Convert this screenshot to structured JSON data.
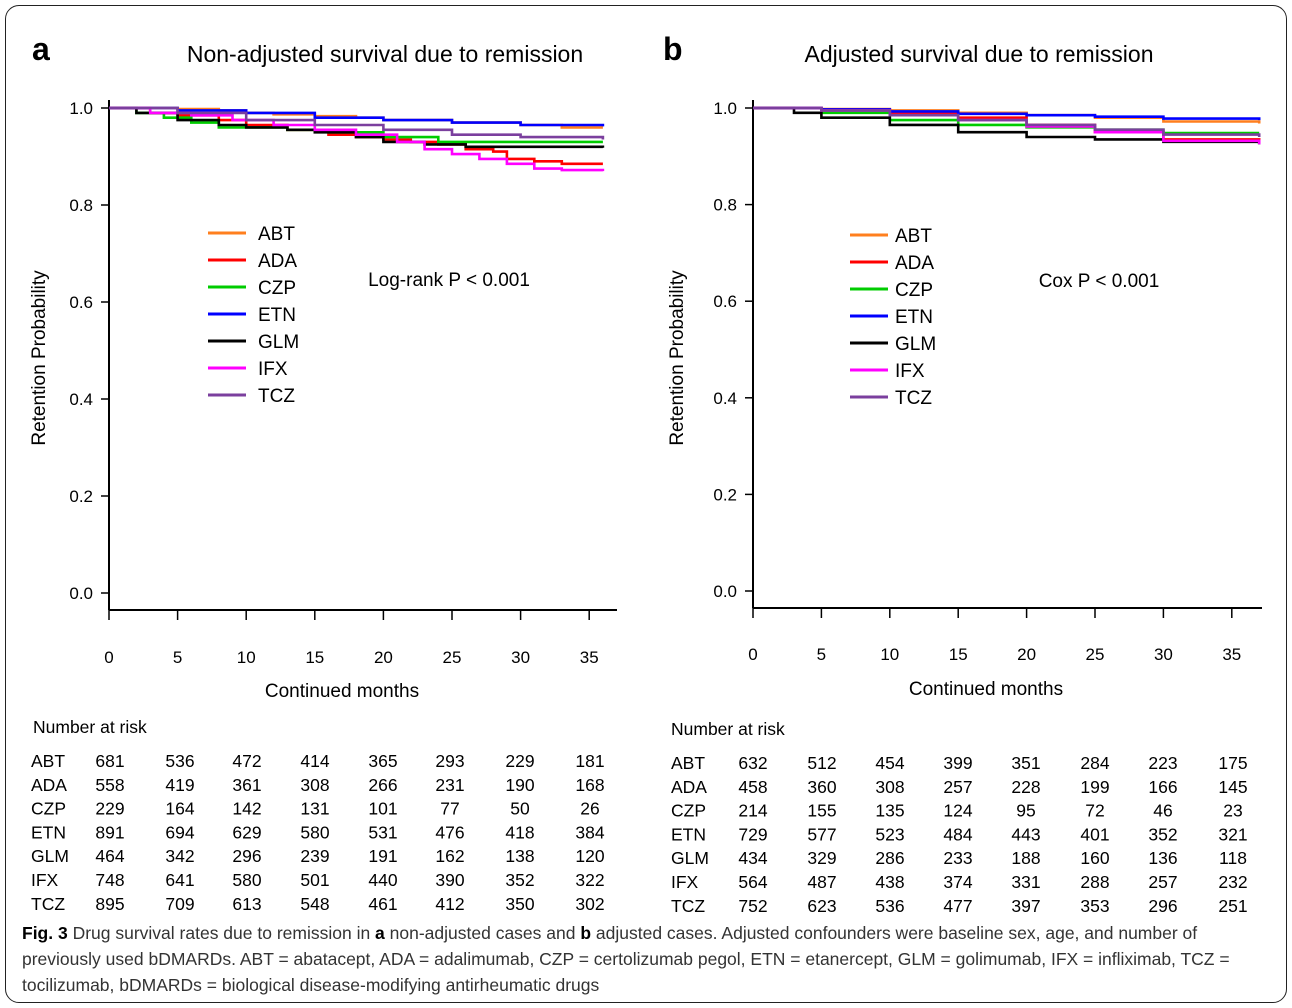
{
  "figure": {
    "caption": {
      "fig_label": "Fig. 3",
      "text_1": " Drug survival rates due to remission in ",
      "a": "a",
      "text_2": " non-adjusted cases and ",
      "b": "b",
      "text_3": " adjusted cases. Adjusted confounders were baseline sex, age, and number of previously used bDMARDs. ABT = abatacept, ADA = adalimumab, CZP = certolizumab pegol, ETN = etanercept, GLM = golimumab, IFX = infliximab, TCZ = tocilizumab, bDMARDs = biological disease-modifying antirheumatic drugs"
    }
  },
  "chart_data": [
    {
      "panel_label": "a",
      "type": "line",
      "title": "Non-adjusted survival due to remission",
      "xlabel": "Continued months",
      "ylabel": "Retention Probability",
      "annotation": "Log-rank P < 0.001",
      "xlim": [
        0,
        36
      ],
      "ylim": [
        0,
        1
      ],
      "xticks": [
        0,
        5,
        10,
        15,
        20,
        25,
        30,
        35
      ],
      "yticks": [
        "0.0",
        "0.2",
        "0.4",
        "0.6",
        "0.8",
        "1.0"
      ],
      "legend_position": "upper-left inside",
      "series": [
        {
          "name": "ABT",
          "color": "#ff7f1e",
          "x": [
            0,
            5,
            8,
            10,
            12,
            15,
            18,
            20,
            25,
            30,
            33,
            36
          ],
          "y": [
            1.0,
            0.998,
            0.995,
            0.99,
            0.987,
            0.983,
            0.98,
            0.975,
            0.97,
            0.965,
            0.96,
            0.96
          ]
        },
        {
          "name": "ADA",
          "color": "#ff0000",
          "x": [
            0,
            3,
            5,
            8,
            10,
            13,
            16,
            18,
            20,
            22,
            24,
            26,
            28,
            29,
            31,
            33,
            36
          ],
          "y": [
            1.0,
            0.99,
            0.985,
            0.975,
            0.965,
            0.955,
            0.945,
            0.94,
            0.935,
            0.93,
            0.925,
            0.915,
            0.91,
            0.895,
            0.89,
            0.885,
            0.885
          ]
        },
        {
          "name": "CZP",
          "color": "#00cc00",
          "x": [
            0,
            2,
            4,
            6,
            8,
            10,
            13,
            16,
            20,
            24,
            36
          ],
          "y": [
            1.0,
            0.99,
            0.98,
            0.97,
            0.96,
            0.96,
            0.955,
            0.95,
            0.94,
            0.93,
            0.93
          ]
        },
        {
          "name": "ETN",
          "color": "#0000ff",
          "x": [
            0,
            5,
            10,
            15,
            20,
            25,
            30,
            36
          ],
          "y": [
            1.0,
            0.995,
            0.99,
            0.98,
            0.975,
            0.97,
            0.965,
            0.962
          ]
        },
        {
          "name": "GLM",
          "color": "#000000",
          "x": [
            0,
            2,
            5,
            8,
            10,
            13,
            15,
            18,
            20,
            23,
            26,
            30,
            36
          ],
          "y": [
            1.0,
            0.99,
            0.975,
            0.965,
            0.96,
            0.955,
            0.95,
            0.94,
            0.93,
            0.925,
            0.92,
            0.92,
            0.918
          ]
        },
        {
          "name": "IFX",
          "color": "#ff00ff",
          "x": [
            0,
            3,
            6,
            9,
            12,
            15,
            18,
            21,
            23,
            25,
            27,
            29,
            31,
            33,
            36
          ],
          "y": [
            1.0,
            0.99,
            0.985,
            0.975,
            0.965,
            0.955,
            0.945,
            0.93,
            0.915,
            0.905,
            0.895,
            0.885,
            0.875,
            0.872,
            0.87
          ]
        },
        {
          "name": "TCZ",
          "color": "#7b3f9e",
          "x": [
            0,
            5,
            10,
            15,
            20,
            25,
            30,
            36
          ],
          "y": [
            1.0,
            0.99,
            0.975,
            0.965,
            0.955,
            0.945,
            0.94,
            0.935
          ]
        }
      ],
      "risk_table": {
        "title": "Number at risk",
        "rows": [
          {
            "name": "ABT",
            "values": [
              681,
              536,
              472,
              414,
              365,
              293,
              229,
              181
            ]
          },
          {
            "name": "ADA",
            "values": [
              558,
              419,
              361,
              308,
              266,
              231,
              190,
              168
            ]
          },
          {
            "name": "CZP",
            "values": [
              229,
              164,
              142,
              131,
              101,
              77,
              50,
              26
            ]
          },
          {
            "name": "ETN",
            "values": [
              891,
              694,
              629,
              580,
              531,
              476,
              418,
              384
            ]
          },
          {
            "name": "GLM",
            "values": [
              464,
              342,
              296,
              239,
              191,
              162,
              138,
              120
            ]
          },
          {
            "name": "IFX",
            "values": [
              748,
              641,
              580,
              501,
              440,
              390,
              352,
              322
            ]
          },
          {
            "name": "TCZ",
            "values": [
              895,
              709,
              613,
              548,
              461,
              412,
              350,
              302
            ]
          }
        ]
      }
    },
    {
      "panel_label": "b",
      "type": "line",
      "title": "Adjusted survival due to remission",
      "xlabel": "Continued months",
      "ylabel": "Retention Probability",
      "annotation": "Cox P < 0.001",
      "xlim": [
        0,
        37
      ],
      "ylim": [
        0,
        1
      ],
      "xticks": [
        0,
        5,
        10,
        15,
        20,
        25,
        30,
        35
      ],
      "yticks": [
        "0.0",
        "0.2",
        "0.4",
        "0.6",
        "0.8",
        "1.0"
      ],
      "legend_position": "upper-left inside",
      "series": [
        {
          "name": "ABT",
          "color": "#ff7f1e",
          "x": [
            0,
            5,
            10,
            15,
            20,
            25,
            30,
            37
          ],
          "y": [
            1.0,
            0.998,
            0.995,
            0.99,
            0.985,
            0.98,
            0.972,
            0.968
          ]
        },
        {
          "name": "ADA",
          "color": "#ff0000",
          "x": [
            0,
            5,
            10,
            15,
            20,
            25,
            30,
            37
          ],
          "y": [
            1.0,
            0.997,
            0.99,
            0.98,
            0.965,
            0.95,
            0.935,
            0.93
          ]
        },
        {
          "name": "CZP",
          "color": "#00cc00",
          "x": [
            0,
            5,
            10,
            15,
            20,
            25,
            30,
            37
          ],
          "y": [
            1.0,
            0.99,
            0.975,
            0.965,
            0.96,
            0.955,
            0.948,
            0.948
          ]
        },
        {
          "name": "ETN",
          "color": "#0000ff",
          "x": [
            0,
            5,
            10,
            15,
            20,
            25,
            30,
            37
          ],
          "y": [
            1.0,
            0.997,
            0.993,
            0.988,
            0.985,
            0.982,
            0.978,
            0.975
          ]
        },
        {
          "name": "GLM",
          "color": "#000000",
          "x": [
            0,
            3,
            5,
            10,
            15,
            20,
            25,
            30,
            37
          ],
          "y": [
            1.0,
            0.99,
            0.98,
            0.965,
            0.95,
            0.94,
            0.935,
            0.93,
            0.925
          ]
        },
        {
          "name": "IFX",
          "color": "#ff00ff",
          "x": [
            0,
            5,
            10,
            15,
            20,
            25,
            30,
            37
          ],
          "y": [
            1.0,
            0.995,
            0.985,
            0.975,
            0.962,
            0.95,
            0.932,
            0.925
          ]
        },
        {
          "name": "TCZ",
          "color": "#7b3f9e",
          "x": [
            0,
            5,
            10,
            15,
            20,
            25,
            30,
            37
          ],
          "y": [
            1.0,
            0.995,
            0.985,
            0.975,
            0.965,
            0.955,
            0.945,
            0.94
          ]
        }
      ],
      "risk_table": {
        "title": "Number at risk",
        "rows": [
          {
            "name": "ABT",
            "values": [
              632,
              512,
              454,
              399,
              351,
              284,
              223,
              175
            ]
          },
          {
            "name": "ADA",
            "values": [
              458,
              360,
              308,
              257,
              228,
              199,
              166,
              145
            ]
          },
          {
            "name": "CZP",
            "values": [
              214,
              155,
              135,
              124,
              95,
              72,
              46,
              23
            ]
          },
          {
            "name": "ETN",
            "values": [
              729,
              577,
              523,
              484,
              443,
              401,
              352,
              321
            ]
          },
          {
            "name": "GLM",
            "values": [
              434,
              329,
              286,
              233,
              188,
              160,
              136,
              118
            ]
          },
          {
            "name": "IFX",
            "values": [
              564,
              487,
              438,
              374,
              331,
              288,
              257,
              232
            ]
          },
          {
            "name": "TCZ",
            "values": [
              752,
              623,
              536,
              477,
              397,
              353,
              296,
              251
            ]
          }
        ]
      }
    }
  ]
}
